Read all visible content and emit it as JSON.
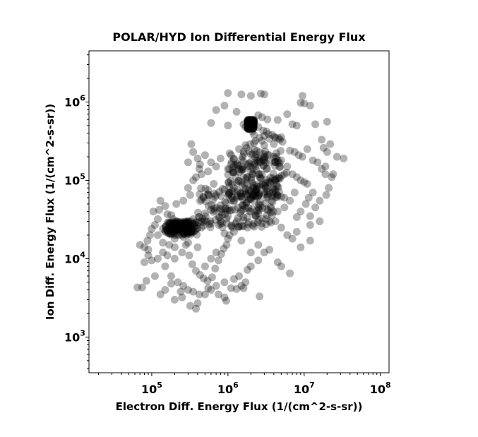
{
  "chart_data": {
    "type": "scatter",
    "title": "POLAR/HYD  Ion Differential Energy Flux",
    "xlabel": "Electron Diff. Energy Flux (1/(cm^2-s-sr))",
    "ylabel": "Ion Diff. Energy Flux (1/(cm^2-s-sr))",
    "xscale": "log",
    "yscale": "log",
    "xlim": [
      15000,
      130000000
    ],
    "ylim": [
      350,
      4500000
    ],
    "x_ticks": [
      {
        "base": "10",
        "exp": "5"
      },
      {
        "base": "10",
        "exp": "6"
      },
      {
        "base": "10",
        "exp": "7"
      },
      {
        "base": "10",
        "exp": "8"
      }
    ],
    "y_ticks": [
      {
        "base": "10",
        "exp": "3"
      },
      {
        "base": "10",
        "exp": "4"
      },
      {
        "base": "10",
        "exp": "5"
      },
      {
        "base": "10",
        "exp": "6"
      }
    ],
    "grid": false,
    "marker_color": "#000000",
    "marker_alpha": 0.3,
    "dense_clusters": [
      {
        "x": [
          150000,
          400000
        ],
        "y": [
          20000,
          30000
        ]
      },
      {
        "x": [
          400000,
          4000000
        ],
        "y": [
          25000,
          80000
        ]
      },
      {
        "x": [
          1000000,
          5000000
        ],
        "y": [
          60000,
          250000
        ]
      },
      {
        "x": [
          1800000,
          2200000
        ],
        "y": [
          450000,
          600000
        ]
      }
    ],
    "points": [
      [
        150000,
        22000
      ],
      [
        180000,
        24000
      ],
      [
        220000,
        25000
      ],
      [
        260000,
        27000
      ],
      [
        300000,
        30000
      ],
      [
        350000,
        32000
      ],
      [
        420000,
        34000
      ],
      [
        500000,
        38000
      ],
      [
        600000,
        42000
      ],
      [
        700000,
        45000
      ],
      [
        800000,
        48000
      ],
      [
        950000,
        52000
      ],
      [
        1100000,
        56000
      ],
      [
        1300000,
        60000
      ],
      [
        1500000,
        62000
      ],
      [
        1800000,
        64000
      ],
      [
        2200000,
        66000
      ],
      [
        2600000,
        68000
      ],
      [
        3000000,
        70000
      ],
      [
        3500000,
        68000
      ],
      [
        4000000,
        66000
      ],
      [
        4500000,
        64000
      ],
      [
        5000000,
        62000
      ],
      [
        5500000,
        60000
      ],
      [
        1200000,
        80000
      ],
      [
        1500000,
        95000
      ],
      [
        1800000,
        110000
      ],
      [
        2000000,
        130000
      ],
      [
        2300000,
        150000
      ],
      [
        2700000,
        170000
      ],
      [
        3000000,
        190000
      ],
      [
        3500000,
        210000
      ],
      [
        1600000,
        230000
      ],
      [
        1400000,
        250000
      ],
      [
        1700000,
        280000
      ],
      [
        2200000,
        300000
      ],
      [
        2800000,
        320000
      ],
      [
        3500000,
        340000
      ],
      [
        4200000,
        350000
      ],
      [
        4800000,
        330000
      ],
      [
        5200000,
        310000
      ],
      [
        4000000,
        290000
      ],
      [
        3000000,
        280000
      ],
      [
        2200000,
        380000
      ],
      [
        1900000,
        450000
      ],
      [
        1800000,
        500000
      ],
      [
        2000000,
        560000
      ],
      [
        2200000,
        540000
      ],
      [
        2500000,
        480000
      ],
      [
        2900000,
        430000
      ],
      [
        3200000,
        420000
      ],
      [
        2000000,
        60000
      ],
      [
        1000000,
        35000
      ],
      [
        800000,
        30000
      ],
      [
        600000,
        28000
      ],
      [
        450000,
        25000
      ],
      [
        350000,
        22000
      ],
      [
        250000,
        20000
      ],
      [
        200000,
        18000
      ],
      [
        170000,
        15000
      ],
      [
        140000,
        12000
      ],
      [
        120000,
        10000
      ],
      [
        150000,
        8000
      ],
      [
        180000,
        6000
      ],
      [
        220000,
        5000
      ],
      [
        260000,
        4500
      ],
      [
        300000,
        4000
      ],
      [
        350000,
        3800
      ],
      [
        420000,
        3500
      ],
      [
        500000,
        3500
      ],
      [
        600000,
        4000
      ],
      [
        700000,
        4500
      ],
      [
        900000,
        5000
      ],
      [
        1100000,
        4200
      ],
      [
        150000,
        4000
      ],
      [
        130000,
        3500
      ],
      [
        200000,
        3000
      ],
      [
        250000,
        3200
      ],
      [
        320000,
        2500
      ],
      [
        380000,
        2300
      ],
      [
        400000,
        2700
      ],
      [
        550000,
        4200
      ],
      [
        750000,
        3500
      ],
      [
        950000,
        2900
      ],
      [
        900000,
        3200
      ],
      [
        1300000,
        4100
      ],
      [
        1600000,
        4200
      ],
      [
        2600000,
        3300
      ],
      [
        180000,
        4800
      ],
      [
        240000,
        3800
      ],
      [
        2000000,
        1200000
      ],
      [
        1500000,
        1250000
      ],
      [
        1000000,
        1300000
      ],
      [
        2700000,
        1280000
      ],
      [
        3000000,
        1250000
      ],
      [
        9500000,
        1200000
      ],
      [
        10000000,
        960000
      ],
      [
        9000000,
        980000
      ],
      [
        12000000,
        900000
      ],
      [
        20000000,
        560000
      ],
      [
        700000,
        790000
      ],
      [
        900000,
        900000
      ],
      [
        1300000,
        750000
      ],
      [
        600000,
        540000
      ],
      [
        1000000,
        500000
      ],
      [
        2500000,
        680000
      ],
      [
        2800000,
        640000
      ],
      [
        3300000,
        600000
      ],
      [
        4500000,
        590000
      ],
      [
        6000000,
        700000
      ],
      [
        7000000,
        520000
      ],
      [
        8000000,
        500000
      ],
      [
        14000000,
        520000
      ],
      [
        17000000,
        330000
      ],
      [
        22000000,
        290000
      ],
      [
        27000000,
        200000
      ],
      [
        33000000,
        190000
      ],
      [
        20000000,
        230000
      ],
      [
        18000000,
        260000
      ],
      [
        19000000,
        150000
      ],
      [
        21000000,
        80000
      ],
      [
        16000000,
        55000
      ],
      [
        14000000,
        45000
      ],
      [
        12000000,
        35000
      ],
      [
        16000000,
        30000
      ],
      [
        12000000,
        27000
      ],
      [
        8000000,
        22000
      ],
      [
        7000000,
        18000
      ],
      [
        9000000,
        14000
      ],
      [
        12000000,
        17000
      ],
      [
        6500000,
        6500
      ],
      [
        5000000,
        8000
      ],
      [
        4500000,
        9000
      ],
      [
        3500000,
        13000
      ],
      [
        3000000,
        12000
      ],
      [
        2500000,
        9500
      ],
      [
        2000000,
        8000
      ],
      [
        1800000,
        7200
      ],
      [
        1400000,
        6000
      ],
      [
        1200000,
        5500
      ],
      [
        1500000,
        4500
      ],
      [
        1700000,
        5000
      ],
      [
        2000000,
        12000
      ],
      [
        2500000,
        15000
      ],
      [
        1500000,
        17000
      ],
      [
        1000000,
        18000
      ],
      [
        900000,
        21000
      ],
      [
        1200000,
        22000
      ],
      [
        700000,
        12000
      ],
      [
        600000,
        10000
      ],
      [
        500000,
        8000
      ],
      [
        400000,
        14000
      ],
      [
        300000,
        16000
      ],
      [
        250000,
        12000
      ],
      [
        200000,
        10000
      ],
      [
        90000,
        11000
      ],
      [
        80000,
        9000
      ],
      [
        75000,
        4300
      ],
      [
        65000,
        4300
      ],
      [
        85000,
        5200
      ],
      [
        110000,
        6000
      ],
      [
        100000,
        9500
      ],
      [
        90000,
        13000
      ],
      [
        80000,
        14000
      ],
      [
        70000,
        15000
      ],
      [
        88000,
        17000
      ],
      [
        95000,
        20000
      ],
      [
        100000,
        24000
      ],
      [
        110000,
        27000
      ],
      [
        120000,
        32000
      ],
      [
        105000,
        40000
      ],
      [
        125000,
        42000
      ],
      [
        130000,
        55000
      ],
      [
        150000,
        47000
      ],
      [
        160000,
        37000
      ],
      [
        180000,
        36000
      ],
      [
        210000,
        50000
      ],
      [
        260000,
        55000
      ],
      [
        320000,
        65000
      ],
      [
        300000,
        80000
      ],
      [
        350000,
        100000
      ],
      [
        380000,
        110000
      ],
      [
        420000,
        140000
      ],
      [
        430000,
        160000
      ],
      [
        300000,
        170000
      ],
      [
        400000,
        190000
      ],
      [
        350000,
        230000
      ],
      [
        330000,
        290000
      ],
      [
        450000,
        120000
      ],
      [
        500000,
        210000
      ],
      [
        550000,
        130000
      ],
      [
        600000,
        170000
      ],
      [
        700000,
        150000
      ],
      [
        800000,
        190000
      ],
      [
        1000000,
        140000
      ],
      [
        1100000,
        160000
      ],
      [
        6000000,
        150000
      ],
      [
        7000000,
        120000
      ],
      [
        8000000,
        110000
      ],
      [
        9000000,
        100000
      ],
      [
        10000000,
        95000
      ],
      [
        11000000,
        90000
      ],
      [
        7500000,
        70000
      ],
      [
        6500000,
        55000
      ],
      [
        5500000,
        45000
      ],
      [
        4500000,
        40000
      ],
      [
        3800000,
        36000
      ],
      [
        4200000,
        30000
      ],
      [
        5000000,
        25000
      ],
      [
        6000000,
        20000
      ],
      [
        2000000,
        40000
      ],
      [
        2500000,
        45000
      ],
      [
        1800000,
        25000
      ],
      [
        1300000,
        30000
      ],
      [
        700000,
        65000
      ],
      [
        650000,
        90000
      ],
      [
        550000,
        75000
      ],
      [
        480000,
        60000
      ],
      [
        1600000,
        110000
      ],
      [
        1800000,
        160000
      ],
      [
        2500000,
        120000
      ],
      [
        3500000,
        170000
      ],
      [
        4000000,
        200000
      ],
      [
        5000000,
        180000
      ],
      [
        6500000,
        240000
      ],
      [
        7500000,
        230000
      ],
      [
        8500000,
        210000
      ],
      [
        9500000,
        200000
      ],
      [
        11000000,
        250000
      ],
      [
        13000000,
        180000
      ],
      [
        15000000,
        170000
      ],
      [
        17000000,
        140000
      ],
      [
        19000000,
        120000
      ],
      [
        23000000,
        110000
      ],
      [
        24000000,
        120000
      ],
      [
        19500000,
        65000
      ],
      [
        13000000,
        70000
      ],
      [
        11500000,
        60000
      ],
      [
        10500000,
        50000
      ],
      [
        9000000,
        40000
      ],
      [
        8000000,
        34000
      ],
      [
        200000,
        14000
      ],
      [
        160000,
        11000
      ],
      [
        140000,
        16000
      ],
      [
        120000,
        20000
      ],
      [
        140000,
        24000
      ],
      [
        170000,
        28000
      ],
      [
        190000,
        32000
      ],
      [
        210000,
        30000
      ],
      [
        230000,
        23000
      ],
      [
        260000,
        19000
      ],
      [
        280000,
        15000
      ],
      [
        310000,
        11000
      ],
      [
        340000,
        8500
      ],
      [
        380000,
        7000
      ],
      [
        430000,
        6200
      ],
      [
        480000,
        5600
      ],
      [
        540000,
        5200
      ],
      [
        620000,
        5800
      ],
      [
        680000,
        7500
      ],
      [
        750000,
        9500
      ],
      [
        820000,
        11500
      ],
      [
        880000,
        13500
      ],
      [
        960000,
        15000
      ],
      [
        1050000,
        20000
      ],
      [
        1150000,
        25000
      ],
      [
        1250000,
        28000
      ],
      [
        1350000,
        33000
      ],
      [
        1450000,
        38000
      ],
      [
        1550000,
        42000
      ],
      [
        1650000,
        47000
      ],
      [
        1750000,
        52000
      ],
      [
        1850000,
        56000
      ],
      [
        1950000,
        58000
      ],
      [
        2100000,
        62000
      ],
      [
        2300000,
        72000
      ],
      [
        2400000,
        78000
      ],
      [
        2600000,
        84000
      ],
      [
        2800000,
        88000
      ],
      [
        3100000,
        92000
      ],
      [
        3400000,
        95000
      ],
      [
        3700000,
        98000
      ],
      [
        4100000,
        100000
      ],
      [
        4400000,
        105000
      ],
      [
        4700000,
        110000
      ],
      [
        5100000,
        115000
      ],
      [
        5500000,
        120000
      ],
      [
        5900000,
        125000
      ],
      [
        3200000,
        140000
      ],
      [
        2900000,
        155000
      ],
      [
        2600000,
        175000
      ],
      [
        2400000,
        195000
      ],
      [
        2100000,
        215000
      ],
      [
        1900000,
        235000
      ],
      [
        1750000,
        260000
      ],
      [
        1950000,
        290000
      ],
      [
        2300000,
        320000
      ],
      [
        2600000,
        350000
      ],
      [
        3000000,
        370000
      ],
      [
        3400000,
        390000
      ],
      [
        3800000,
        380000
      ],
      [
        4100000,
        360000
      ],
      [
        4600000,
        345000
      ],
      [
        5000000,
        355000
      ],
      [
        2100000,
        420000
      ],
      [
        2000000,
        470000
      ],
      [
        1950000,
        520000
      ],
      [
        1850000,
        550000
      ],
      [
        2100000,
        580000
      ],
      [
        1700000,
        480000
      ],
      [
        1600000,
        520000
      ]
    ]
  }
}
